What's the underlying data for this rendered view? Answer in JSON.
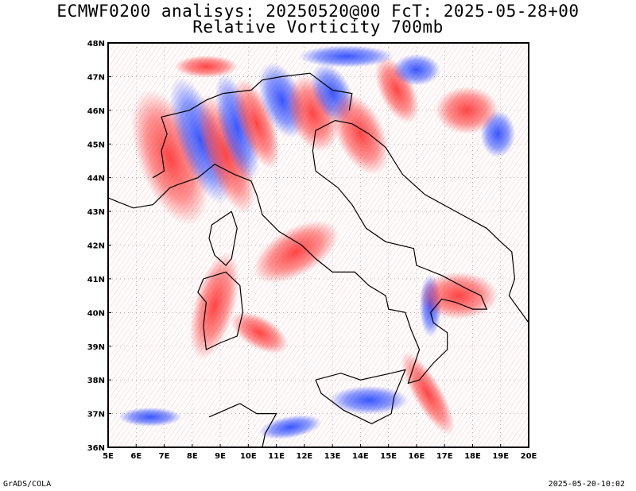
{
  "header": {
    "title_line1": "ECMWF0200 analisys: 20250520@00 FcT: 2025-05-28+00",
    "title_line2": "Relative Vorticity 700mb"
  },
  "axes": {
    "lon_labels": [
      "5E",
      "6E",
      "7E",
      "8E",
      "9E",
      "10E",
      "11E",
      "12E",
      "13E",
      "14E",
      "15E",
      "16E",
      "17E",
      "18E",
      "19E",
      "20E"
    ],
    "lat_labels": [
      "36N",
      "37N",
      "38N",
      "39N",
      "40N",
      "41N",
      "42N",
      "43N",
      "44N",
      "45N",
      "46N",
      "47N",
      "48N"
    ],
    "lon_range": [
      5,
      20
    ],
    "lat_range": [
      36,
      48
    ]
  },
  "colors": {
    "positive": "#ff3b3b",
    "negative": "#3b5bff",
    "coast": "#000000",
    "grid": "#888888"
  },
  "footer": {
    "credit": "GrADS/COLA",
    "timestamp": "2025-05-20-10:02"
  }
}
